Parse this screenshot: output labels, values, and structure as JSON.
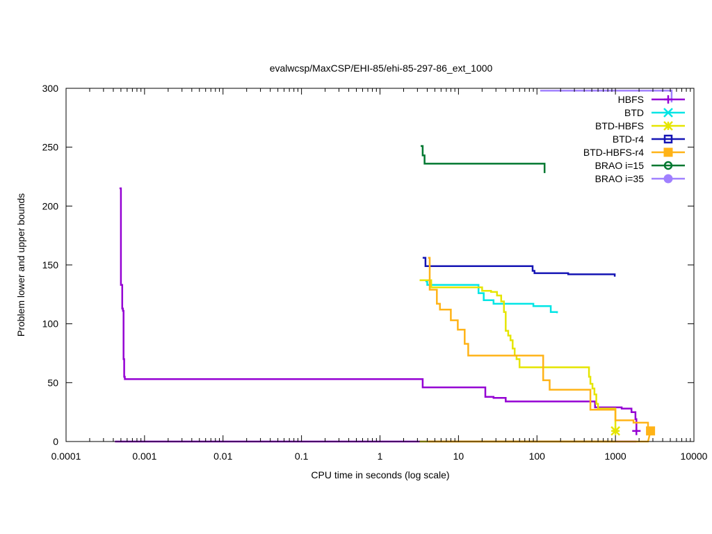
{
  "chart_data": {
    "type": "line",
    "title": "evalwcsp/MaxCSP/EHI-85/ehi-85-297-86_ext_1000",
    "xlabel": "CPU time in seconds (log scale)",
    "ylabel": "Problem lower and upper bounds",
    "xscale": "log",
    "xlim": [
      0.0001,
      10000
    ],
    "ylim": [
      0,
      300
    ],
    "xticks": [
      {
        "value": 0.0001,
        "label": "0.0001"
      },
      {
        "value": 0.001,
        "label": "0.001"
      },
      {
        "value": 0.01,
        "label": "0.01"
      },
      {
        "value": 0.1,
        "label": "0.1"
      },
      {
        "value": 1,
        "label": "1"
      },
      {
        "value": 10,
        "label": "10"
      },
      {
        "value": 100,
        "label": "100"
      },
      {
        "value": 1000,
        "label": "1000"
      },
      {
        "value": 10000,
        "label": "10000"
      }
    ],
    "yticks": [
      {
        "value": 0,
        "label": "0"
      },
      {
        "value": 50,
        "label": "50"
      },
      {
        "value": 100,
        "label": "100"
      },
      {
        "value": 150,
        "label": "150"
      },
      {
        "value": 200,
        "label": "200"
      },
      {
        "value": 250,
        "label": "250"
      },
      {
        "value": 300,
        "label": "300"
      }
    ],
    "legend_position": "top-right",
    "series": [
      {
        "name": "HBFS",
        "color": "#9400d3",
        "marker": "plus",
        "upper": [
          [
            0.00048,
            215
          ],
          [
            0.0005,
            215
          ],
          [
            0.0005,
            133
          ],
          [
            0.00052,
            133
          ],
          [
            0.00052,
            113
          ],
          [
            0.00053,
            113
          ],
          [
            0.00053,
            111
          ],
          [
            0.00054,
            111
          ],
          [
            0.00054,
            70
          ],
          [
            0.00055,
            70
          ],
          [
            0.00055,
            55
          ],
          [
            0.00056,
            55
          ],
          [
            0.00056,
            53
          ],
          [
            3.5,
            53
          ],
          [
            3.5,
            46
          ],
          [
            22,
            46
          ],
          [
            22,
            38
          ],
          [
            28,
            38
          ],
          [
            28,
            37
          ],
          [
            40,
            37
          ],
          [
            40,
            34
          ],
          [
            550,
            34
          ],
          [
            550,
            29
          ],
          [
            1200,
            29
          ],
          [
            1200,
            28
          ],
          [
            1600,
            28
          ],
          [
            1600,
            25
          ],
          [
            1800,
            25
          ],
          [
            1800,
            19
          ],
          [
            1850,
            19
          ],
          [
            1850,
            9
          ]
        ],
        "lower": [
          [
            0.00042,
            0
          ],
          [
            1850,
            0
          ]
        ],
        "end_marker": [
          1850,
          9
        ]
      },
      {
        "name": "BTD",
        "color": "#00e5e5",
        "marker": "cross",
        "upper": [
          [
            3.8,
            136
          ],
          [
            4,
            136
          ],
          [
            4,
            133
          ],
          [
            18,
            133
          ],
          [
            18,
            126
          ],
          [
            21,
            126
          ],
          [
            21,
            120
          ],
          [
            28,
            120
          ],
          [
            28,
            117
          ],
          [
            90,
            117
          ],
          [
            90,
            115
          ],
          [
            150,
            115
          ],
          [
            150,
            110
          ],
          [
            180,
            110
          ],
          [
            180,
            109
          ]
        ],
        "lower": [],
        "end_marker": null
      },
      {
        "name": "BTD-HBFS",
        "color": "#e5e500",
        "marker": "star",
        "upper": [
          [
            3.2,
            137
          ],
          [
            4.5,
            137
          ],
          [
            4.5,
            131
          ],
          [
            20,
            131
          ],
          [
            20,
            128
          ],
          [
            26,
            128
          ],
          [
            26,
            127
          ],
          [
            31,
            127
          ],
          [
            31,
            124
          ],
          [
            35,
            124
          ],
          [
            35,
            119
          ],
          [
            38,
            119
          ],
          [
            38,
            110
          ],
          [
            40,
            110
          ],
          [
            40,
            94
          ],
          [
            43,
            94
          ],
          [
            43,
            90
          ],
          [
            46,
            90
          ],
          [
            46,
            86
          ],
          [
            49,
            86
          ],
          [
            49,
            79
          ],
          [
            52,
            79
          ],
          [
            52,
            73
          ],
          [
            55,
            73
          ],
          [
            55,
            70
          ],
          [
            60,
            70
          ],
          [
            60,
            63
          ],
          [
            460,
            63
          ],
          [
            460,
            55
          ],
          [
            480,
            55
          ],
          [
            480,
            49
          ],
          [
            510,
            49
          ],
          [
            510,
            45
          ],
          [
            540,
            45
          ],
          [
            540,
            40
          ],
          [
            570,
            40
          ],
          [
            570,
            32
          ],
          [
            600,
            32
          ],
          [
            600,
            28
          ],
          [
            1000,
            28
          ],
          [
            1000,
            9
          ]
        ],
        "lower": [
          [
            3.2,
            0
          ],
          [
            1000,
            0
          ]
        ],
        "end_marker": [
          1000,
          9
        ]
      },
      {
        "name": "BTD-r4",
        "color": "#1414b4",
        "marker": "square",
        "upper": [
          [
            3.5,
            156
          ],
          [
            3.8,
            156
          ],
          [
            3.8,
            149
          ],
          [
            88,
            149
          ],
          [
            88,
            145
          ],
          [
            93,
            145
          ],
          [
            93,
            143
          ],
          [
            250,
            143
          ],
          [
            250,
            142
          ],
          [
            980,
            142
          ],
          [
            980,
            140
          ]
        ],
        "lower": [],
        "end_marker": null
      },
      {
        "name": "BTD-HBFS-r4",
        "color": "#ffb317",
        "marker": "filled-square",
        "upper": [
          [
            4.1,
            156
          ],
          [
            4.3,
            156
          ],
          [
            4.3,
            129
          ],
          [
            5.3,
            129
          ],
          [
            5.3,
            117
          ],
          [
            5.8,
            117
          ],
          [
            5.8,
            112
          ],
          [
            8,
            112
          ],
          [
            8,
            103
          ],
          [
            9.8,
            103
          ],
          [
            9.8,
            95
          ],
          [
            12,
            95
          ],
          [
            12,
            83
          ],
          [
            13.3,
            83
          ],
          [
            13.3,
            73
          ],
          [
            120,
            73
          ],
          [
            120,
            52
          ],
          [
            145,
            52
          ],
          [
            145,
            44
          ],
          [
            480,
            44
          ],
          [
            480,
            27
          ],
          [
            1000,
            27
          ],
          [
            1000,
            18
          ],
          [
            1700,
            18
          ],
          [
            1700,
            16
          ],
          [
            2600,
            16
          ],
          [
            2600,
            9
          ]
        ],
        "lower": [
          [
            4.1,
            0
          ],
          [
            2600,
            0
          ],
          [
            2800,
            9
          ]
        ],
        "end_marker": [
          2800,
          9
        ]
      },
      {
        "name": "BRAO i=15",
        "color": "#007830",
        "marker": "circle",
        "upper": [
          [
            3.3,
            251
          ],
          [
            3.5,
            251
          ],
          [
            3.5,
            243
          ],
          [
            3.7,
            243
          ],
          [
            3.7,
            236
          ],
          [
            125,
            236
          ],
          [
            125,
            228
          ]
        ],
        "lower": [],
        "end_marker": null
      },
      {
        "name": "BRAO i=35",
        "color": "#a080ff",
        "marker": "filled-circle",
        "upper": [
          [
            110,
            298
          ],
          [
            5200,
            298
          ],
          [
            5200,
            288
          ]
        ],
        "lower": [],
        "end_marker": null
      }
    ]
  }
}
